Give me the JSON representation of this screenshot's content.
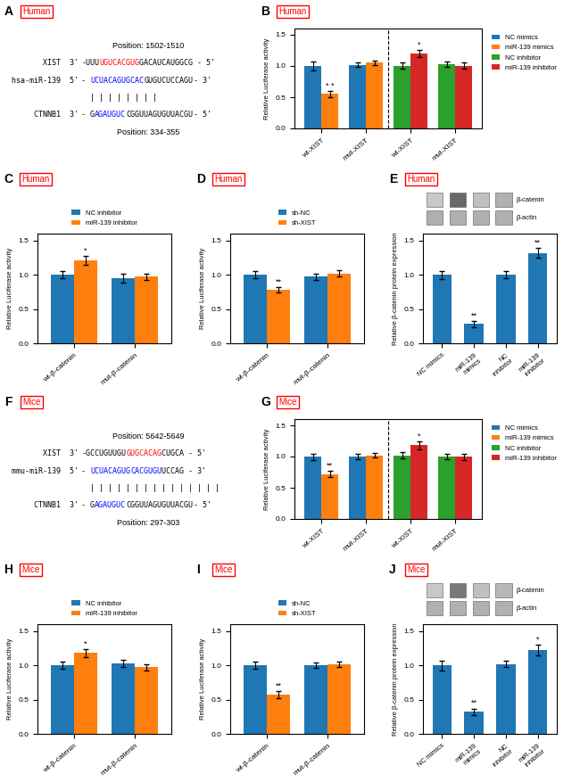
{
  "chart_data": [
    {
      "type": "text",
      "title": "A",
      "annotations": [
        {
          "text": "Human",
          "color": "red"
        }
      ],
      "lines": [
        {
          "text": "Position: 1502-1510"
        },
        {
          "label": "XIST  3'",
          "segments": [
            {
              "text": "-UUU",
              "color": "black"
            },
            {
              "text": "UGUCACGUG",
              "color": "red"
            },
            {
              "text": "GACAUCAUGGCG - 5'",
              "color": "black"
            }
          ]
        },
        {
          "label": "hsa-miR-139  5'",
          "segments": [
            {
              "text": "- ",
              "color": "black"
            },
            {
              "text": "UCUACAGUGCAC",
              "color": "blue"
            },
            {
              "text": "GUGUCUCCAGU",
              "color": "black"
            },
            {
              "text": "- 3'",
              "color": "black"
            }
          ]
        },
        {
          "segments": [
            {
              "text": "| | | | | | | |",
              "color": "black"
            }
          ]
        },
        {
          "label": "CTNNB1  3'",
          "segments": [
            {
              "text": "- G",
              "color": "black"
            },
            {
              "text": "AGAUGUC",
              "color": "blue"
            },
            {
              "text": "CGGUUAGUGUUACGU",
              "color": "black"
            },
            {
              "text": "- 5'",
              "color": "black"
            }
          ]
        },
        {
          "text": "Position: 334-355"
        }
      ]
    },
    {
      "type": "bar",
      "title": "B",
      "annotations": [
        {
          "text": "Human",
          "color": "red"
        }
      ],
      "categories": [
        "wt-XIST",
        "mut-XIST",
        "wt-XIST",
        "mut-XIST"
      ],
      "series": [
        {
          "name": "NC mimics",
          "values": [
            1.0,
            1.02,
            null,
            null
          ],
          "errors": [
            0.07,
            0.03,
            null,
            null
          ]
        },
        {
          "name": "miR-139 mimics",
          "values": [
            0.55,
            1.05,
            null,
            null
          ],
          "errors": [
            0.05,
            0.04,
            null,
            null
          ],
          "significance": [
            "* *",
            null,
            null,
            null
          ]
        },
        {
          "name": "NC inhibitor",
          "values": [
            null,
            null,
            1.0,
            1.03
          ],
          "errors": [
            null,
            null,
            0.05,
            0.04
          ]
        },
        {
          "name": "miR-139 inhibitor",
          "values": [
            null,
            null,
            1.2,
            1.0
          ],
          "errors": [
            null,
            null,
            0.06,
            0.05
          ],
          "significance": [
            null,
            null,
            "*",
            null
          ]
        }
      ],
      "ylabel": "Relative Luciferase activity",
      "ylim": [
        0.0,
        1.6
      ],
      "yticks": [
        {
          "value": 0.0,
          "label": "0.0"
        },
        0.5,
        {
          "value": 1.0,
          "label": "1.0"
        },
        1.5
      ],
      "legend": "right"
    },
    {
      "type": "bar",
      "title": "C",
      "annotations": [
        {
          "text": "Human",
          "color": "red"
        }
      ],
      "categories": [
        "wt-β-catenin",
        "mut-β-catenin"
      ],
      "series": [
        {
          "name": "NC inhibitor",
          "values": [
            1.0,
            0.95
          ],
          "errors": [
            0.05,
            0.06
          ]
        },
        {
          "name": "miR-139 inhibitor",
          "values": [
            1.21,
            0.97
          ],
          "errors": [
            0.06,
            0.05
          ],
          "significance": [
            "*",
            null
          ]
        }
      ],
      "ylabel": "Relative Luciferase activity",
      "ylim": [
        0.0,
        1.6
      ],
      "yticks": [
        {
          "value": 0.0,
          "label": "0.0"
        },
        0.5,
        {
          "value": 1.0,
          "label": "1.0"
        },
        1.5
      ],
      "legend": "top"
    },
    {
      "type": "bar",
      "title": "D",
      "annotations": [
        {
          "text": "Human",
          "color": "red"
        }
      ],
      "categories": [
        "wt-β-catenin",
        "mut-β-catenin"
      ],
      "series": [
        {
          "name": "sh-NC",
          "values": [
            1.0,
            0.97
          ],
          "errors": [
            0.05,
            0.04
          ]
        },
        {
          "name": "sh-XIST",
          "values": [
            0.78,
            1.02
          ],
          "errors": [
            0.04,
            0.05
          ],
          "significance": [
            "**",
            null
          ]
        }
      ],
      "ylabel": "Relative Luciferase activity",
      "ylim": [
        0.0,
        1.6
      ],
      "yticks": [
        {
          "value": 0.0,
          "label": "0.0"
        },
        0.5,
        {
          "value": 1.0,
          "label": "1.0"
        },
        1.5
      ],
      "legend": "top"
    },
    {
      "type": "bar",
      "title": "E",
      "annotations": [
        {
          "text": "Human",
          "color": "red"
        }
      ],
      "categories": [
        "NC mimics",
        "miR-139\nmimics",
        "NC\ninhibitor",
        "miR-139\ninhibitor"
      ],
      "series": [
        {
          "values": [
            1.0,
            0.28,
            1.0,
            1.32
          ],
          "errors": [
            0.06,
            0.04,
            0.05,
            0.07
          ],
          "significance": [
            null,
            "**",
            null,
            "**"
          ]
        }
      ],
      "ylabel": "Relative β-catenin protein expression",
      "ylim": [
        0.0,
        1.6
      ],
      "yticks": [
        {
          "value": 0.0,
          "label": "0.0"
        },
        0.5,
        {
          "value": 1.0,
          "label": "1.0"
        },
        1.5
      ],
      "blot": [
        {
          "label": "β-catenin",
          "colors": [
            "#c8c8c8",
            "#686868",
            "#c0c0c0",
            "#b0b0b0"
          ]
        },
        {
          "label": "β-actin",
          "colors": [
            "#b0b0b0",
            "#b0b0b0",
            "#b0b0b0",
            "#b0b0b0"
          ]
        }
      ]
    },
    {
      "type": "text",
      "title": "F",
      "annotations": [
        {
          "text": "Mice",
          "color": "red"
        }
      ],
      "lines": [
        {
          "text": "Position: 5642-5649"
        },
        {
          "label": "XIST  3'",
          "segments": [
            {
              "text": "-GCCUGUUGU",
              "color": "black"
            },
            {
              "text": "GUGCACAG",
              "color": "red"
            },
            {
              "text": "CUGCA - 5'",
              "color": "black"
            }
          ]
        },
        {
          "label": "mmu-miR-139  5'",
          "segments": [
            {
              "text": "- ",
              "color": "black"
            },
            {
              "text": "UCUACAGUG",
              "color": "blue"
            },
            {
              "text": "CACGUGU",
              "color": "blue"
            },
            {
              "text": "UCCAG - 3'",
              "color": "black"
            }
          ]
        },
        {
          "segments": [
            {
              "text": "| | | | | | |",
              "color": "black"
            },
            {
              "text": "| | | | | | | |",
              "color": "black"
            }
          ]
        },
        {
          "label": "CTNNB1  3'",
          "segments": [
            {
              "text": "- G",
              "color": "black"
            },
            {
              "text": "AGAUGUC",
              "color": "blue"
            },
            {
              "text": "CGGUUAGUGUUACGU",
              "color": "black"
            },
            {
              "text": "- 5'",
              "color": "black"
            }
          ]
        },
        {
          "text": "Position: 297-303"
        }
      ]
    },
    {
      "type": "bar",
      "title": "G",
      "annotations": [
        {
          "text": "Mice",
          "color": "red"
        }
      ],
      "categories": [
        "wt-XIST",
        "mut-XIST",
        "wt-XIST",
        "mut-XIST"
      ],
      "series": [
        {
          "name": "NC mimics",
          "values": [
            1.0,
            1.0,
            null,
            null
          ],
          "errors": [
            0.05,
            0.04,
            null,
            null
          ]
        },
        {
          "name": "miR-139 mimics",
          "values": [
            0.72,
            1.02,
            null,
            null
          ],
          "errors": [
            0.05,
            0.04,
            null,
            null
          ],
          "significance": [
            "**",
            null,
            null,
            null
          ]
        },
        {
          "name": "NC inhibitor",
          "values": [
            null,
            null,
            1.02,
            1.0
          ],
          "errors": [
            null,
            null,
            0.05,
            0.04
          ]
        },
        {
          "name": "miR-139 inhibitor",
          "values": [
            null,
            null,
            1.18,
            1.0
          ],
          "errors": [
            null,
            null,
            0.06,
            0.05
          ],
          "significance": [
            null,
            null,
            "*",
            null
          ]
        }
      ],
      "ylabel": "Relative Luciferase activity",
      "ylim": [
        0.0,
        1.6
      ],
      "yticks": [
        {
          "value": 0.0,
          "label": "0.0"
        },
        0.5,
        {
          "value": 1.0,
          "label": "1.0"
        },
        1.5
      ],
      "legend": "right"
    },
    {
      "type": "bar",
      "title": "H",
      "annotations": [
        {
          "text": "Mice",
          "color": "red"
        }
      ],
      "categories": [
        "wt-β-catenin",
        "mut-β-catenin"
      ],
      "series": [
        {
          "name": "NC inhibitor",
          "values": [
            1.0,
            1.03
          ],
          "errors": [
            0.05,
            0.05
          ]
        },
        {
          "name": "miR-139 inhibitor",
          "values": [
            1.18,
            0.97
          ],
          "errors": [
            0.06,
            0.05
          ],
          "significance": [
            "*",
            null
          ]
        }
      ],
      "ylabel": "Relative Luciferase activity",
      "ylim": [
        0.0,
        1.6
      ],
      "yticks": [
        {
          "value": 0.0,
          "label": "0.0"
        },
        0.5,
        {
          "value": 1.0,
          "label": "1.0"
        },
        1.5
      ],
      "legend": "top"
    },
    {
      "type": "bar",
      "title": "I",
      "annotations": [
        {
          "text": "Mice",
          "color": "red"
        }
      ],
      "categories": [
        "wt-β-catenin",
        "mut-β-catenin"
      ],
      "series": [
        {
          "name": "sh-NC",
          "values": [
            1.0,
            1.0
          ],
          "errors": [
            0.05,
            0.04
          ]
        },
        {
          "name": "sh-XIST",
          "values": [
            0.57,
            1.02
          ],
          "errors": [
            0.05,
            0.04
          ],
          "significance": [
            "**",
            null
          ]
        }
      ],
      "ylabel": "Relative Luciferase activity",
      "ylim": [
        0.0,
        1.6
      ],
      "yticks": [
        {
          "value": 0.0,
          "label": "0.0"
        },
        0.5,
        {
          "value": 1.0,
          "label": "1.0"
        },
        1.5
      ],
      "legend": "top"
    },
    {
      "type": "bar",
      "title": "J",
      "annotations": [
        {
          "text": "Mice",
          "color": "red"
        }
      ],
      "categories": [
        "NC mimics",
        "miR-139\nmimics",
        "NC\ninhibitor",
        "miR-139\ninhibitor"
      ],
      "series": [
        {
          "values": [
            1.0,
            0.32,
            1.02,
            1.22
          ],
          "errors": [
            0.07,
            0.05,
            0.05,
            0.08
          ],
          "significance": [
            null,
            "**",
            null,
            "*"
          ]
        }
      ],
      "ylabel": "Relative β-catenin protein expression",
      "ylim": [
        0.0,
        1.6
      ],
      "yticks": [
        {
          "value": 0.0,
          "label": "0.0"
        },
        0.5,
        {
          "value": 1.0,
          "label": "1.0"
        },
        1.5
      ],
      "blot": [
        {
          "label": "β-catenin",
          "colors": [
            "#c8c8c8",
            "#787878",
            "#c0c0c0",
            "#b8b8b8"
          ]
        },
        {
          "label": "β-actin",
          "colors": [
            "#b0b0b0",
            "#b0b0b0",
            "#b0b0b0",
            "#b0b0b0"
          ]
        }
      ]
    }
  ]
}
